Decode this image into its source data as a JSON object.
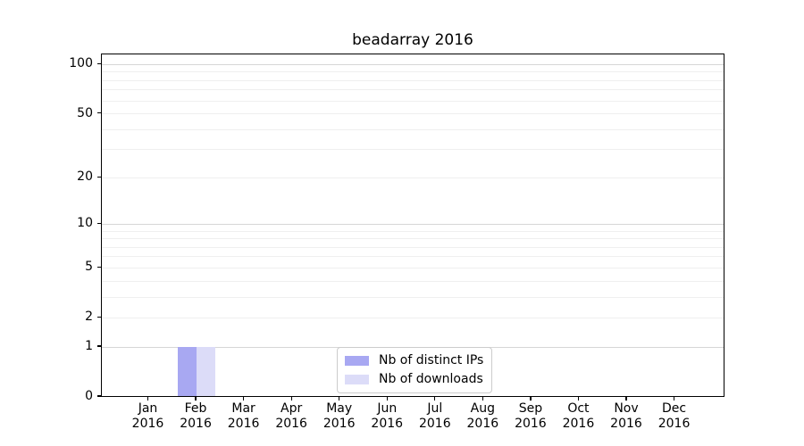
{
  "chart_data": {
    "type": "bar",
    "title": "beadarray 2016",
    "categories": [
      "Jan",
      "Feb",
      "Mar",
      "Apr",
      "May",
      "Jun",
      "Jul",
      "Aug",
      "Sep",
      "Oct",
      "Nov",
      "Dec"
    ],
    "category_year": "2016",
    "series": [
      {
        "name": "Nb of distinct IPs",
        "color": "#a8a8f2",
        "values": [
          0,
          1,
          0,
          0,
          0,
          0,
          0,
          0,
          0,
          0,
          0,
          0
        ]
      },
      {
        "name": "Nb of downloads",
        "color": "#dcdcf8",
        "values": [
          0,
          1,
          0,
          0,
          0,
          0,
          0,
          0,
          0,
          0,
          0,
          0
        ]
      }
    ],
    "y_ticks": [
      0,
      1,
      2,
      5,
      10,
      20,
      50,
      100
    ],
    "y_scale": "log10(1+v)",
    "ylim": [
      0,
      115
    ],
    "grid": "horizontal log gridlines, majors at 1/10/100",
    "legend_position": "lower center"
  },
  "colors": {
    "background": "#ffffff",
    "axis_frame": "#000000",
    "grid_major": "#d6d6d6",
    "grid_minor": "#efefef",
    "text": "#000000",
    "legend_border": "#cccccc"
  }
}
